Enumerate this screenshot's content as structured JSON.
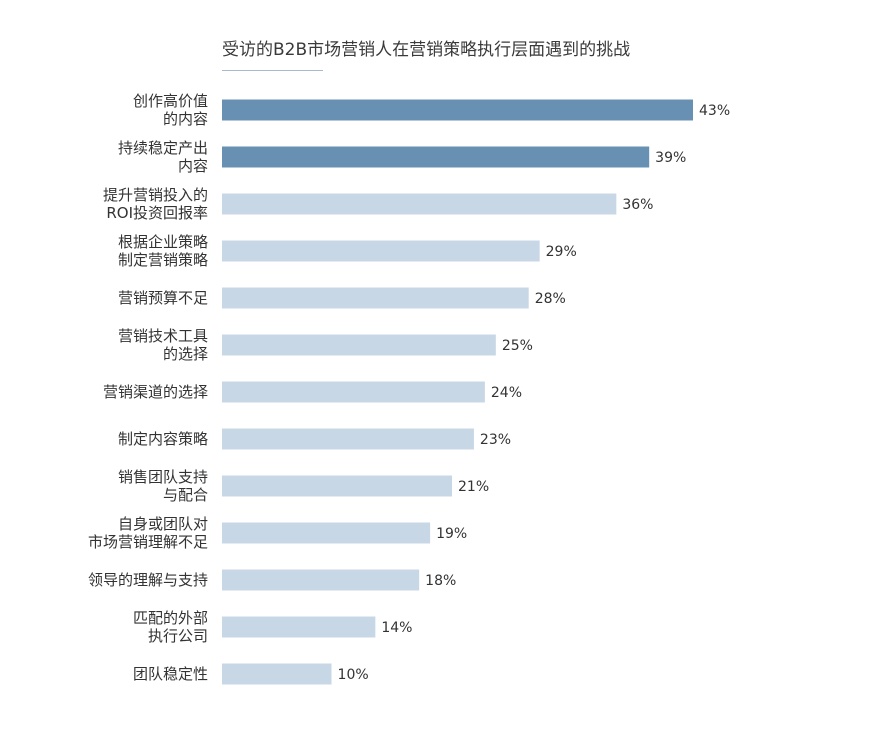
{
  "chart_data": {
    "type": "bar",
    "orientation": "horizontal",
    "title": "受访的B2B市场营销人在营销策略执行层面遇到的挑战",
    "xlabel": "",
    "ylabel": "",
    "xlim": [
      0,
      43
    ],
    "grid": false,
    "legend": "none",
    "value_suffix": "%",
    "highlight_color": "#6790b3",
    "base_color": "#c8d7e6",
    "categories": [
      [
        "创作高价值",
        "的内容"
      ],
      [
        "持续稳定产出",
        "内容"
      ],
      [
        "提升营销投入的",
        "ROI投资回报率"
      ],
      [
        "根据企业策略",
        "制定营销策略"
      ],
      [
        "营销预算不足"
      ],
      [
        "营销技术工具",
        "的选择"
      ],
      [
        "营销渠道的选择"
      ],
      [
        "制定内容策略"
      ],
      [
        "销售团队支持",
        "与配合"
      ],
      [
        "自身或团队对",
        "市场营销理解不足"
      ],
      [
        "领导的理解与支持"
      ],
      [
        "匹配的外部",
        "执行公司"
      ],
      [
        "团队稳定性"
      ]
    ],
    "values": [
      43,
      39,
      36,
      29,
      28,
      25,
      24,
      23,
      21,
      19,
      18,
      14,
      10
    ],
    "highlighted": [
      true,
      true,
      false,
      false,
      false,
      false,
      false,
      false,
      false,
      false,
      false,
      false,
      false
    ]
  }
}
